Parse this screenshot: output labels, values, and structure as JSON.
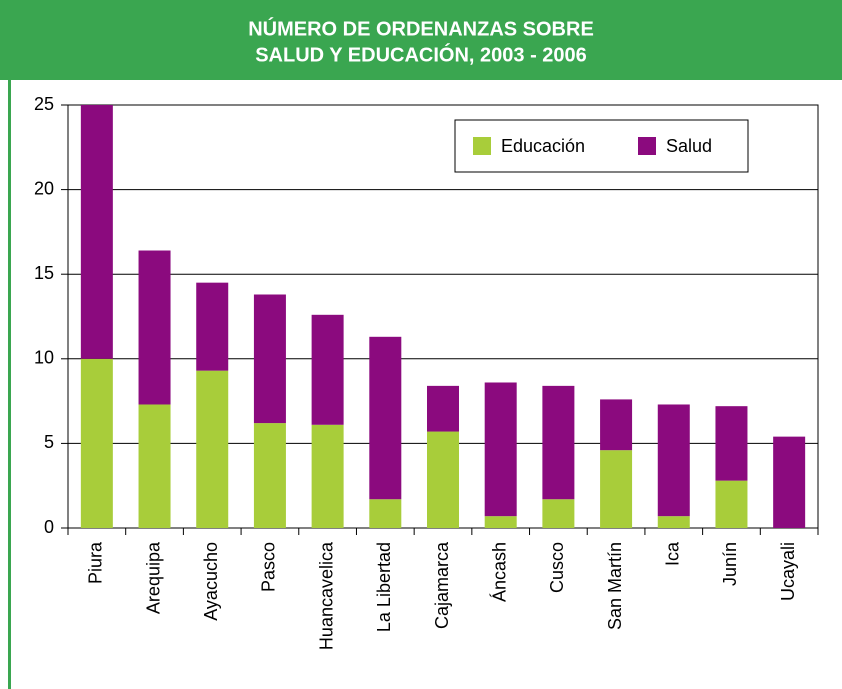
{
  "chart_data": {
    "type": "stacked_bar",
    "title": [
      "NÚMERO DE ORDENANZAS SOBRE",
      "SALUD Y EDUCACIÓN, 2003 - 2006"
    ],
    "categories": [
      "Piura",
      "Arequipa",
      "Ayacucho",
      "Pasco",
      "Huancavelica",
      "La Libertad",
      "Cajamarca",
      "Áncash",
      "Cusco",
      "San Martín",
      "Ica",
      "Junín",
      "Ucayali"
    ],
    "series": [
      {
        "name": "Educación",
        "color": "#a8cd3a",
        "values": [
          10,
          7.3,
          9.3,
          6.2,
          6.1,
          1.7,
          5.7,
          0.7,
          1.7,
          4.6,
          0.7,
          2.8,
          0
        ]
      },
      {
        "name": "Salud",
        "color": "#8b0a7e",
        "values": [
          15,
          9.1,
          5.2,
          7.6,
          6.5,
          9.6,
          2.7,
          7.9,
          6.7,
          3.0,
          6.6,
          4.4,
          5.4
        ]
      }
    ],
    "ylim": [
      0,
      25
    ],
    "yticks": [
      0,
      5,
      10,
      15,
      20,
      25
    ],
    "grid": true,
    "legend": "top-right"
  }
}
